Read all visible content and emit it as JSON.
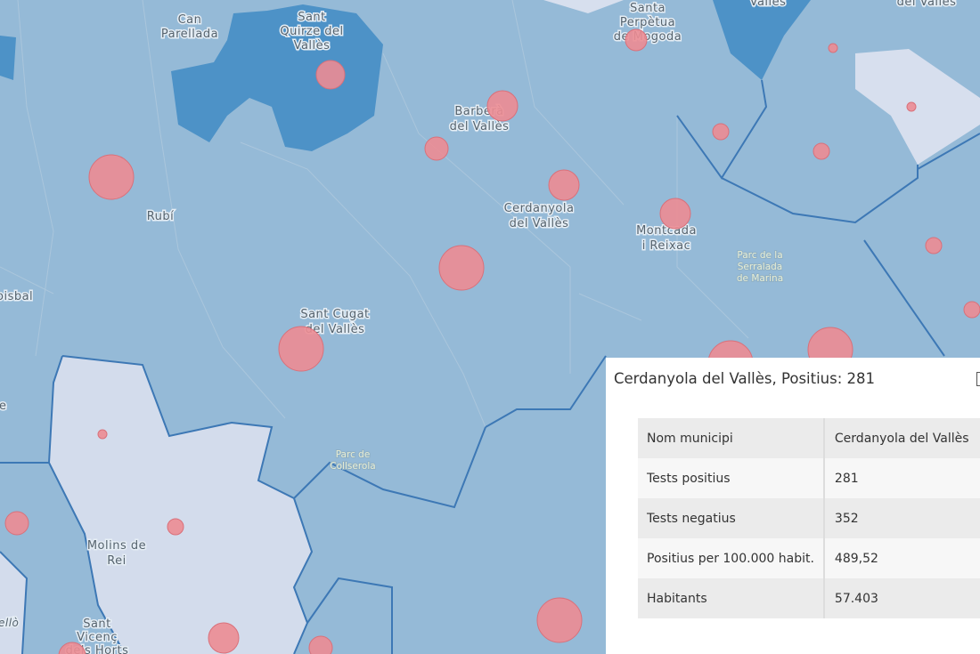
{
  "map": {
    "labels": [
      {
        "lines": [
          "Can",
          "Parellada"
        ]
      },
      {
        "lines": [
          "Sant",
          "Quirze del",
          "Vallès"
        ]
      },
      {
        "lines": [
          "Santa",
          "Perpètua",
          "de Mogoda"
        ]
      },
      {
        "lines": [
          "Vallès"
        ]
      },
      {
        "lines": [
          "del Vallès"
        ]
      },
      {
        "lines": [
          "Barberà",
          "del Vallès"
        ]
      },
      {
        "lines": [
          "Rubí"
        ]
      },
      {
        "lines": [
          "Cerdanyola",
          "del Vallès"
        ]
      },
      {
        "lines": [
          "Montcada",
          "i Reixac"
        ]
      },
      {
        "lines": [
          "Parc de la",
          "Serralada",
          "de Marina"
        ]
      },
      {
        "lines": [
          "oisbal"
        ]
      },
      {
        "lines": [
          "Sant Cugat",
          "del Vallès"
        ]
      },
      {
        "lines": [
          "e"
        ]
      },
      {
        "lines": [
          "Parc de",
          "Collserola"
        ]
      },
      {
        "lines": [
          "Molins de",
          "Rei"
        ]
      },
      {
        "lines": [
          "Sant",
          "Vicenç",
          "dels Horts"
        ]
      },
      {
        "lines": [
          "ellò"
        ]
      }
    ]
  },
  "popup": {
    "title": "Cerdanyola del Vallès, Positius: 281",
    "table": {
      "rows": [
        [
          "Nom municipi",
          "Cerdanyola del Vallès"
        ],
        [
          "Tests positius",
          "281"
        ],
        [
          "Tests negatius",
          "352"
        ],
        [
          "Positius per 100.000 habit.",
          "489,52"
        ],
        [
          "Habitants",
          "57.403"
        ]
      ]
    }
  }
}
